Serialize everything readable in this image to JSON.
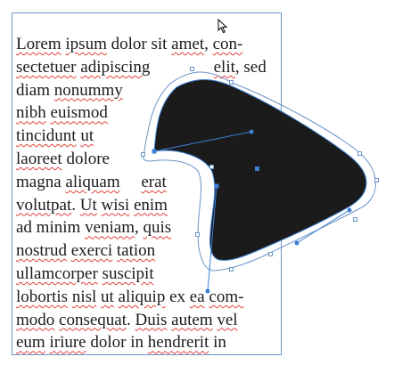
{
  "text_frame": {
    "lines": [
      [
        {
          "t": "Lorem",
          "sq": true
        },
        {
          "t": " "
        },
        {
          "t": "ipsum",
          "sq": true
        },
        {
          "t": " dolor sit "
        },
        {
          "t": "amet",
          "sq": true
        },
        {
          "t": ", "
        },
        {
          "t": "con-",
          "sq": true
        }
      ],
      [
        {
          "t": "sectetuer",
          "sq": true
        },
        {
          "t": " "
        },
        {
          "t": "adipiscing",
          "sq": true
        },
        {
          "t": "               "
        },
        {
          "t": "elit",
          "sq": true
        },
        {
          "t": ", sed"
        }
      ],
      [
        {
          "t": "diam "
        },
        {
          "t": "nonummy",
          "sq": true
        }
      ],
      [
        {
          "t": "nibh",
          "sq": true
        },
        {
          "t": " "
        },
        {
          "t": "euismod",
          "sq": true
        }
      ],
      [
        {
          "t": "tincidunt",
          "sq": true
        },
        {
          "t": " "
        },
        {
          "t": "ut",
          "sq": true
        }
      ],
      [
        {
          "t": "laoreet",
          "sq": true
        },
        {
          "t": " dolore"
        }
      ],
      [
        {
          "t": "magna "
        },
        {
          "t": "aliquam",
          "sq": true
        },
        {
          "t": "     "
        },
        {
          "t": "erat",
          "sq": true
        }
      ],
      [
        {
          "t": "volutpat",
          "sq": true
        },
        {
          "t": ". "
        },
        {
          "t": "Ut",
          "sq": true
        },
        {
          "t": " "
        },
        {
          "t": "wisi",
          "sq": true
        },
        {
          "t": " "
        },
        {
          "t": "enim",
          "sq": true
        }
      ],
      [
        {
          "t": "ad minim "
        },
        {
          "t": "veniam",
          "sq": true
        },
        {
          "t": ", "
        },
        {
          "t": "quis",
          "sq": true
        }
      ],
      [
        {
          "t": "nostrud",
          "sq": true
        },
        {
          "t": " "
        },
        {
          "t": "exerci",
          "sq": true
        },
        {
          "t": " "
        },
        {
          "t": "tation",
          "sq": true
        }
      ],
      [
        {
          "t": "ullamcorper",
          "sq": true
        },
        {
          "t": " "
        },
        {
          "t": "suscipit",
          "sq": true
        }
      ],
      [
        {
          "t": "lobortis",
          "sq": true
        },
        {
          "t": " "
        },
        {
          "t": "nisl",
          "sq": true
        },
        {
          "t": " "
        },
        {
          "t": "ut",
          "sq": true
        },
        {
          "t": " "
        },
        {
          "t": "aliquip",
          "sq": true
        },
        {
          "t": " ex "
        },
        {
          "t": "ea",
          "sq": true
        },
        {
          "t": " "
        },
        {
          "t": "com-",
          "sq": true
        }
      ],
      [
        {
          "t": "modo",
          "sq": true
        },
        {
          "t": " "
        },
        {
          "t": "consequat",
          "sq": true
        },
        {
          "t": ". "
        },
        {
          "t": "Duis",
          "sq": true
        },
        {
          "t": " "
        },
        {
          "t": "autem",
          "sq": true
        },
        {
          "t": " "
        },
        {
          "t": "vel",
          "sq": true
        }
      ],
      [
        {
          "t": "eum",
          "sq": true
        },
        {
          "t": " "
        },
        {
          "t": "iriure",
          "sq": true
        },
        {
          "t": " dolor in "
        },
        {
          "t": "hendrerit",
          "sq": true
        },
        {
          "t": " in"
        }
      ]
    ]
  },
  "colors": {
    "text": "#1b1b1b",
    "spell_squiggle": "#e2403a",
    "frame_border": "#6b94c7",
    "wrap_outline": "#6b94c7",
    "shape_fill": "#1b1b1b",
    "path_selection": "#3d7fd4"
  },
  "icons": {
    "cursor": "arrow-pointer-icon"
  }
}
